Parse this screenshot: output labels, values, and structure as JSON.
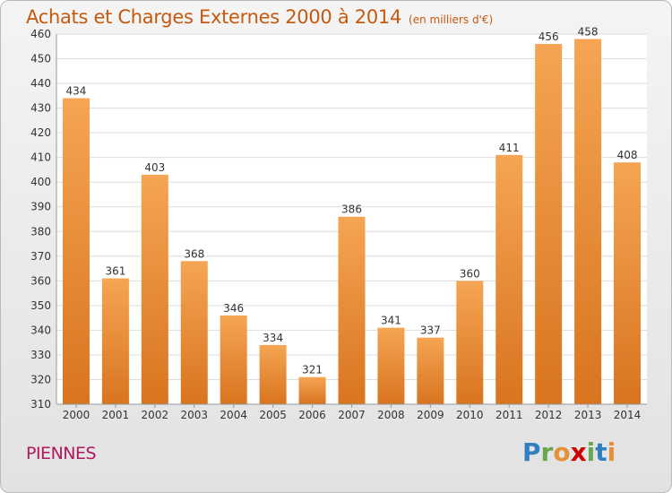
{
  "title": "Achats et Charges Externes 2000 à 2014",
  "subtitle": "(en milliers d'€)",
  "commune": "PIENNES",
  "logo": {
    "letters": [
      "P",
      "r",
      "o",
      "x",
      "i",
      "t",
      "i"
    ],
    "colors": [
      "#2f7fc1",
      "#6aa84f",
      "#e69138",
      "#cc0000",
      "#6aa84f",
      "#2f7fc1",
      "#e69138"
    ]
  },
  "colors": {
    "bar_top": "#f5a553",
    "bar_bottom": "#d9741f",
    "plot_bg": "#ffffff",
    "grid": "#dddddd",
    "title": "#c45a10",
    "commune": "#b0185f"
  },
  "chart_data": {
    "type": "bar",
    "title": "Achats et Charges Externes 2000 à 2014",
    "subtitle": "(en milliers d'€)",
    "categories": [
      "2000",
      "2001",
      "2002",
      "2003",
      "2004",
      "2005",
      "2006",
      "2007",
      "2008",
      "2009",
      "2010",
      "2011",
      "2012",
      "2013",
      "2014"
    ],
    "values": [
      434,
      361,
      403,
      368,
      346,
      334,
      321,
      386,
      341,
      337,
      360,
      411,
      456,
      458,
      408
    ],
    "ylim": [
      310,
      460
    ],
    "yticks": [
      310,
      320,
      330,
      340,
      350,
      360,
      370,
      380,
      390,
      400,
      410,
      420,
      430,
      440,
      450,
      460
    ],
    "grid": true,
    "legend": "none",
    "data_labels": true
  }
}
